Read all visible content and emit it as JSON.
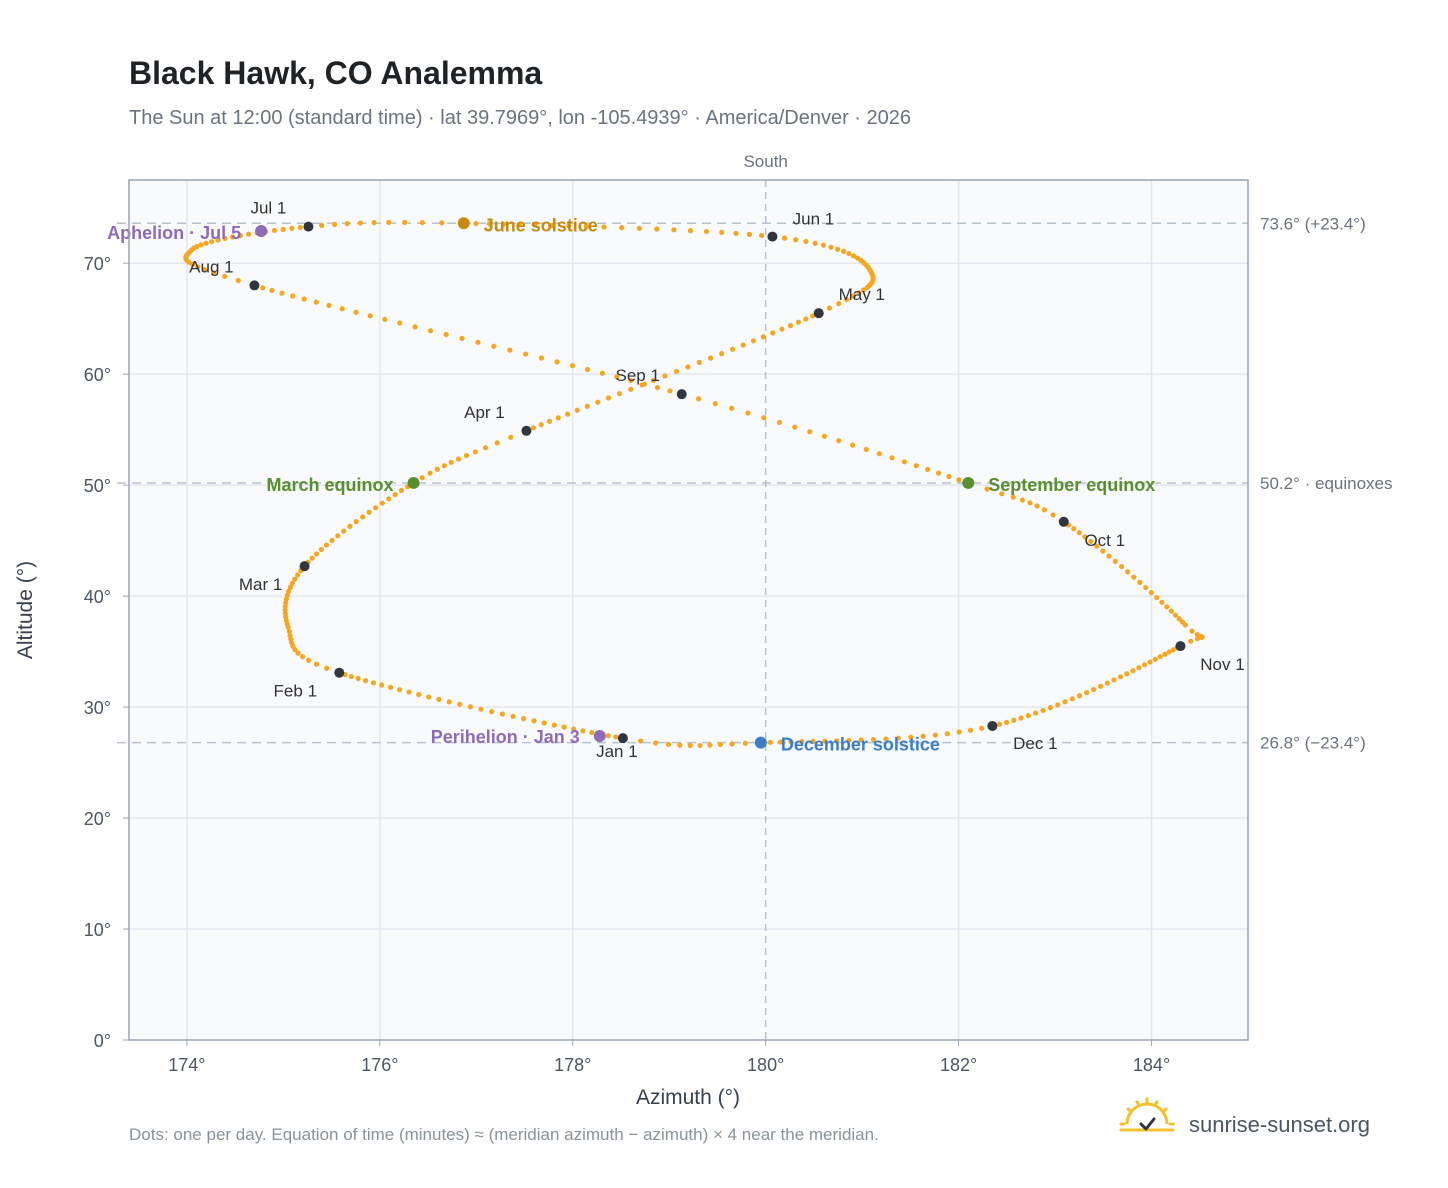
{
  "header": {
    "title": "Black Hawk, CO Analemma",
    "subtitle": "The Sun at 12:00 (standard time) · lat 39.7969°, lon -105.4939° · America/Denver · 2026"
  },
  "footer": {
    "note": "Dots: one per day. Equation of time (minutes) ≈ (meridian azimuth − azimuth) × 4 near the meridian.",
    "brand": "sunrise-sunset.org",
    "brand_icon": "sunrise-logo-icon"
  },
  "colors": {
    "path": "#f5a623",
    "month_marker": "#2f3640",
    "march_equinox": "#5a8f2e",
    "september_equinox": "#5a8f2e",
    "june_solstice": "#c98a0b",
    "december_solstice": "#3b7ec6",
    "perihelion": "#8e6bb8",
    "aphelion": "#8e6bb8",
    "plot_background": "#f8fafc",
    "grid": "#e4e8ee",
    "reference_line": "#b8c2cf"
  },
  "chart_data": {
    "type": "scatter",
    "title": "Black Hawk, CO Analemma",
    "xlabel": "Azimuth (°)",
    "ylabel": "Altitude (°)",
    "xlim": [
      173.4,
      185.0
    ],
    "ylim": [
      0,
      77.5
    ],
    "x_ticks": [
      174,
      176,
      178,
      180,
      182,
      184
    ],
    "x_tick_labels": [
      "174°",
      "176°",
      "178°",
      "180°",
      "182°",
      "184°"
    ],
    "y_ticks": [
      0,
      10,
      20,
      30,
      40,
      50,
      60,
      70
    ],
    "y_tick_labels": [
      "0°",
      "10°",
      "20°",
      "30°",
      "40°",
      "50°",
      "60°",
      "70°"
    ],
    "grid": true,
    "meridian": {
      "azimuth": 180,
      "label": "South"
    },
    "reference_lines": [
      {
        "altitude": 73.6,
        "label": "73.6° (+23.4°)"
      },
      {
        "altitude": 50.2,
        "label": "50.2° · equinoxes"
      },
      {
        "altitude": 26.8,
        "label": "26.8° (−23.4°)"
      }
    ],
    "month_markers": [
      {
        "label": "Jan 1",
        "azimuth": 178.52,
        "altitude": 27.2
      },
      {
        "label": "Feb 1",
        "azimuth": 175.58,
        "altitude": 33.1
      },
      {
        "label": "Mar 1",
        "azimuth": 175.22,
        "altitude": 42.7
      },
      {
        "label": "Apr 1",
        "azimuth": 177.52,
        "altitude": 54.9
      },
      {
        "label": "May 1",
        "azimuth": 180.55,
        "altitude": 65.5
      },
      {
        "label": "Jun 1",
        "azimuth": 180.07,
        "altitude": 72.4
      },
      {
        "label": "Jul 1",
        "azimuth": 175.26,
        "altitude": 73.3
      },
      {
        "label": "Aug 1",
        "azimuth": 174.7,
        "altitude": 68.0
      },
      {
        "label": "Sep 1",
        "azimuth": 179.13,
        "altitude": 58.2
      },
      {
        "label": "Oct 1",
        "azimuth": 183.09,
        "altitude": 46.7
      },
      {
        "label": "Nov 1",
        "azimuth": 184.3,
        "altitude": 35.5
      },
      {
        "label": "Dec 1",
        "azimuth": 182.35,
        "altitude": 28.3
      }
    ],
    "events": [
      {
        "label": "March equinox",
        "azimuth": 176.35,
        "altitude": 50.2
      },
      {
        "label": "June solstice",
        "azimuth": 176.87,
        "altitude": 73.6
      },
      {
        "label": "September equinox",
        "azimuth": 182.1,
        "altitude": 50.2
      },
      {
        "label": "December solstice",
        "azimuth": 179.95,
        "altitude": 26.8
      },
      {
        "label": "Perihelion · Jan 3",
        "azimuth": 178.28,
        "altitude": 27.4
      },
      {
        "label": "Aphelion · Jul 5",
        "azimuth": 174.77,
        "altitude": 72.9
      }
    ],
    "daily_path_keypoints": [
      {
        "day": 1,
        "azimuth": 178.52,
        "altitude": 27.2
      },
      {
        "day": 32,
        "azimuth": 175.58,
        "altitude": 33.1
      },
      {
        "day": 44,
        "azimuth": 175.05,
        "altitude": 37.2
      },
      {
        "day": 60,
        "azimuth": 175.22,
        "altitude": 42.7
      },
      {
        "day": 79,
        "azimuth": 176.35,
        "altitude": 50.2
      },
      {
        "day": 91,
        "azimuth": 177.52,
        "altitude": 54.9
      },
      {
        "day": 121,
        "azimuth": 180.55,
        "altitude": 65.5
      },
      {
        "day": 136,
        "azimuth": 181.08,
        "altitude": 69.4
      },
      {
        "day": 152,
        "azimuth": 180.07,
        "altitude": 72.4
      },
      {
        "day": 172,
        "azimuth": 176.87,
        "altitude": 73.6
      },
      {
        "day": 182,
        "azimuth": 175.26,
        "altitude": 73.3
      },
      {
        "day": 199,
        "azimuth": 174.05,
        "altitude": 71.2
      },
      {
        "day": 213,
        "azimuth": 174.7,
        "altitude": 68.0
      },
      {
        "day": 244,
        "azimuth": 179.13,
        "altitude": 58.2
      },
      {
        "day": 265,
        "azimuth": 182.1,
        "altitude": 50.2
      },
      {
        "day": 274,
        "azimuth": 183.09,
        "altitude": 46.7
      },
      {
        "day": 297,
        "azimuth": 184.35,
        "altitude": 37.4
      },
      {
        "day": 305,
        "azimuth": 184.3,
        "altitude": 35.5
      },
      {
        "day": 335,
        "azimuth": 182.35,
        "altitude": 28.3
      },
      {
        "day": 355,
        "azimuth": 179.95,
        "altitude": 26.8
      },
      {
        "day": 366,
        "azimuth": 178.52,
        "altitude": 27.2
      }
    ]
  }
}
